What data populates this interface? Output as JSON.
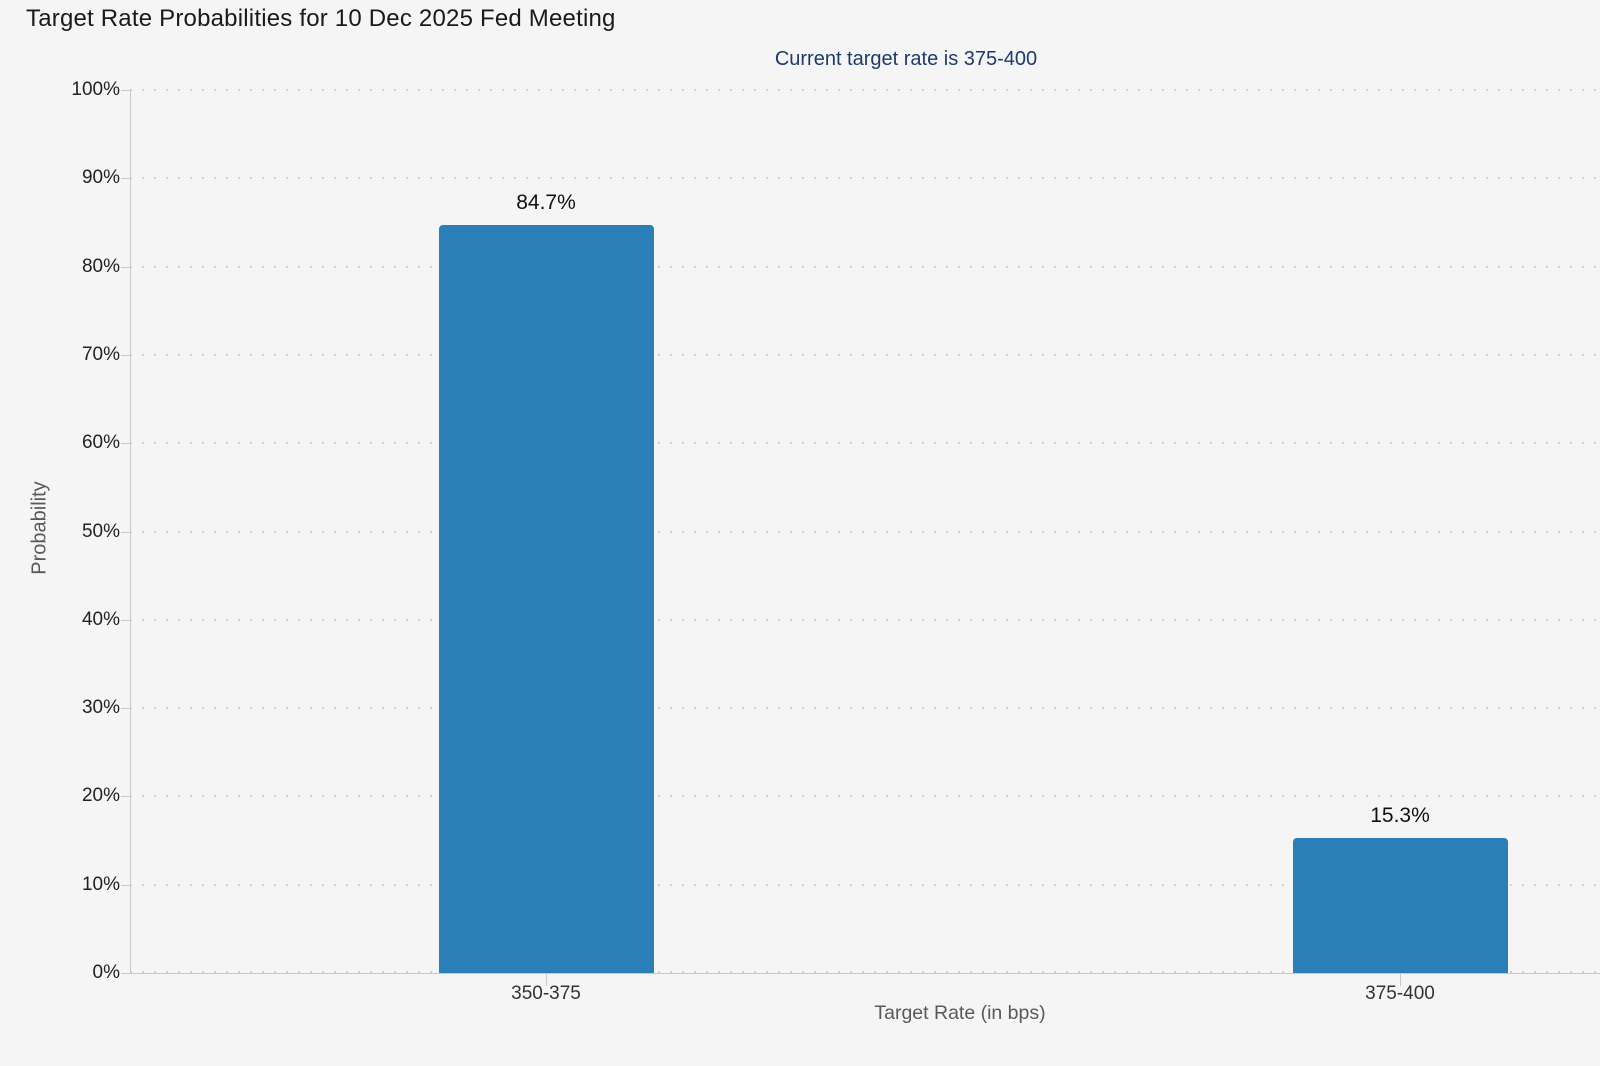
{
  "page": {
    "background": "#f5f5f6"
  },
  "chart_data": {
    "type": "bar",
    "title": "Target Rate Probabilities for 10 Dec 2025 Fed Meeting",
    "subtitle": "Current target rate is 375-400",
    "xlabel": "Target Rate (in bps)",
    "ylabel": "Probability",
    "categories": [
      "350-375",
      "375-400"
    ],
    "values": [
      84.7,
      15.3
    ],
    "value_labels": [
      "84.7%",
      "15.3%"
    ],
    "ylim": [
      0,
      100
    ],
    "ytick_step": 10,
    "ytick_labels": [
      "0%",
      "10%",
      "20%",
      "30%",
      "40%",
      "50%",
      "60%",
      "70%",
      "80%",
      "90%",
      "100%"
    ],
    "grid": "horizontal-dotted",
    "legend": "none",
    "colors": {
      "background": "#f5f5f6",
      "bar": "#2a7fb8",
      "title_text": "#1a1a1a",
      "subtitle_text": "#1e3a6e",
      "tick_text": "#222222",
      "category_text": "#333333",
      "value_label_text": "#111111",
      "axis_title_text": "#58595b",
      "axis_line": "#c8c8c9",
      "grid_dot": "#d2d2d4"
    }
  }
}
